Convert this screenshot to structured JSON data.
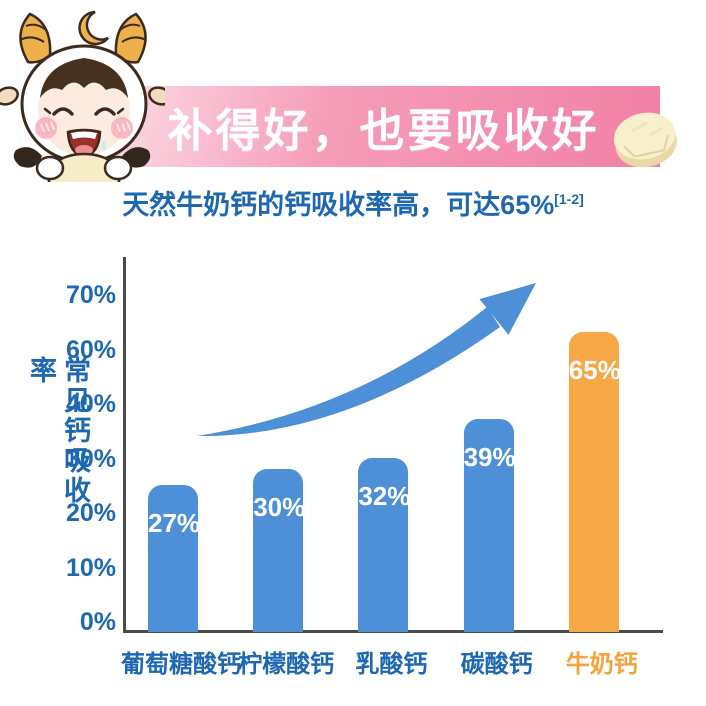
{
  "banner": {
    "title": "补得好，也要吸收好",
    "gradient_from": "#fcdbe4",
    "gradient_mid": "#f59db8",
    "gradient_to": "#f180a5"
  },
  "subtitle": {
    "text": "天然牛奶钙的钙吸收率高，可达65%",
    "ref": "[1-2]"
  },
  "colors": {
    "bar_blue": "#4d90d8",
    "bar_orange": "#f6a846",
    "text_blue": "#1e68b2",
    "text_orange": "#f6a23c",
    "axis_line": "#4a4a4a",
    "arrow_blue": "#4d90d8",
    "banner_text": "#ffffff"
  },
  "chart_data": {
    "type": "bar",
    "title": "",
    "xlabel": "",
    "ylabel": "常见钙吸收率",
    "categories": [
      "葡萄糖酸钙",
      "柠檬酸钙",
      "乳酸钙",
      "碳酸钙",
      "牛奶钙"
    ],
    "values": [
      27,
      30,
      32,
      39,
      65
    ],
    "value_labels": [
      "27%",
      "30%",
      "32%",
      "39%",
      "65%"
    ],
    "bar_colors": [
      "#4d90d8",
      "#4d90d8",
      "#4d90d8",
      "#4d90d8",
      "#f6a846"
    ],
    "category_colors": [
      "#1e68b2",
      "#1e68b2",
      "#1e68b2",
      "#1e68b2",
      "#f6a23c"
    ],
    "highlight_index": 4,
    "y_ticks_top_to_bottom": [
      "70%",
      "60%",
      "40%",
      "30%",
      "20%",
      "10%",
      "0%"
    ],
    "y_tick_values_bottom_to_top": [
      0,
      10,
      20,
      30,
      40,
      60,
      70
    ],
    "ylim": [
      0,
      70
    ],
    "grid": false,
    "legend": false,
    "annotation": "upward-trend-arrow"
  }
}
